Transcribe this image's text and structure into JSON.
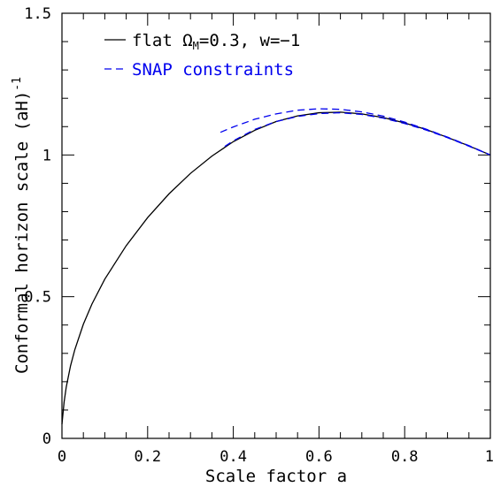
{
  "chart_data": {
    "type": "line",
    "xlabel": "Scale factor a",
    "ylabel": "Conformal horizon scale (aH)",
    "ylabel_superscript": "-1",
    "xlim": [
      0,
      1
    ],
    "ylim": [
      0,
      1.5
    ],
    "x_ticks": [
      {
        "value": 0,
        "label": "0"
      },
      {
        "value": 0.2,
        "label": "0.2"
      },
      {
        "value": 0.4,
        "label": "0.4"
      },
      {
        "value": 0.6,
        "label": "0.6"
      },
      {
        "value": 0.8,
        "label": "0.8"
      },
      {
        "value": 1,
        "label": "1"
      }
    ],
    "y_ticks": [
      {
        "value": 0,
        "label": "0"
      },
      {
        "value": 0.5,
        "label": "0.5"
      },
      {
        "value": 1,
        "label": "1"
      },
      {
        "value": 1.5,
        "label": "1.5"
      }
    ],
    "legend": {
      "placement": "top-left",
      "entries": [
        {
          "prefix": "flat ",
          "symbol": "Ω",
          "subscript": "M",
          "suffix": "=0.3, w=−1",
          "style": "solid",
          "color": "#000000"
        },
        {
          "label": "SNAP constraints",
          "style": "dashed",
          "color": "#0000ee"
        }
      ]
    },
    "series": [
      {
        "style": "solid",
        "color": "#000000",
        "x": [
          0.0,
          0.005,
          0.01,
          0.02,
          0.03,
          0.05,
          0.07,
          0.1,
          0.15,
          0.2,
          0.25,
          0.3,
          0.35,
          0.4,
          0.45,
          0.5,
          0.55,
          0.6,
          0.65,
          0.7,
          0.75,
          0.8,
          0.85,
          0.9,
          0.95,
          1.0
        ],
        "y": [
          0.05,
          0.128,
          0.181,
          0.256,
          0.313,
          0.403,
          0.474,
          0.562,
          0.68,
          0.779,
          0.863,
          0.935,
          0.996,
          1.047,
          1.087,
          1.118,
          1.138,
          1.149,
          1.151,
          1.145,
          1.132,
          1.113,
          1.09,
          1.062,
          1.032,
          1.0
        ]
      },
      {
        "style": "dashed",
        "color": "#0000ee",
        "x": [
          0.37,
          0.4,
          0.45,
          0.5,
          0.55,
          0.6,
          0.65,
          0.7,
          0.75,
          0.8,
          0.85,
          0.9,
          0.95,
          1.0
        ],
        "y": [
          1.08,
          1.099,
          1.126,
          1.145,
          1.158,
          1.163,
          1.161,
          1.152,
          1.137,
          1.116,
          1.091,
          1.063,
          1.033,
          1.0
        ]
      },
      {
        "style": "dashed",
        "color": "#0000ee",
        "x": [
          0.38,
          0.4,
          0.45,
          0.5,
          0.55,
          0.6,
          0.65,
          0.7,
          0.75,
          0.8,
          0.85,
          0.9,
          0.95,
          1.0
        ],
        "y": [
          1.03,
          1.05,
          1.09,
          1.118,
          1.136,
          1.146,
          1.149,
          1.143,
          1.13,
          1.111,
          1.088,
          1.061,
          1.031,
          1.0
        ]
      }
    ]
  }
}
